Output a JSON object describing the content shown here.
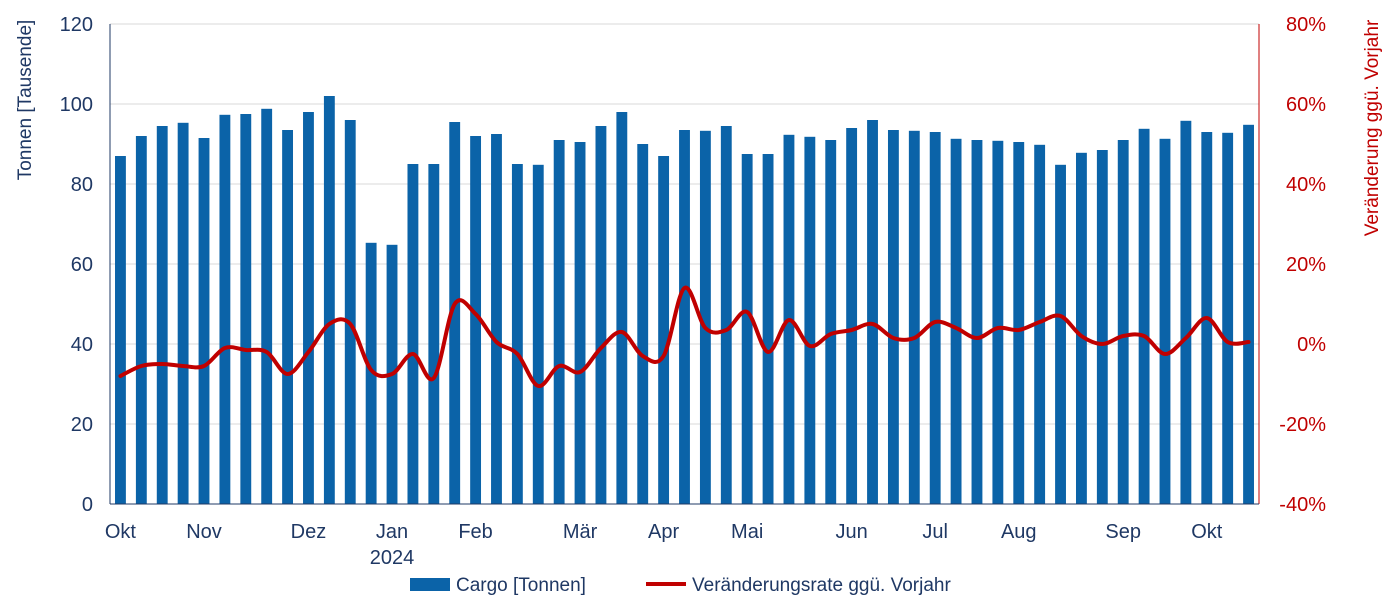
{
  "chart_data": {
    "type": "bar+line",
    "y_left": {
      "label": "Tonnen [Tausende]",
      "range": [
        0,
        120
      ],
      "ticks": [
        "0",
        "20",
        "40",
        "60",
        "80",
        "100",
        "120"
      ]
    },
    "y_right": {
      "label": "Veränderung ggü. Vorjahr",
      "range": [
        -40,
        80
      ],
      "ticks": [
        "-40%",
        "-20%",
        "0%",
        "20%",
        "40%",
        "60%",
        "80%"
      ]
    },
    "month_labels": [
      {
        "label": "Okt",
        "week": 1
      },
      {
        "label": "Nov",
        "week": 5
      },
      {
        "label": "Dez",
        "week": 10
      },
      {
        "label": "Jan",
        "week": 14
      },
      {
        "label": "Feb",
        "week": 18
      },
      {
        "label": "Mär",
        "week": 23
      },
      {
        "label": "Apr",
        "week": 27
      },
      {
        "label": "Mai",
        "week": 31
      },
      {
        "label": "Jun",
        "week": 36
      },
      {
        "label": "Jul",
        "week": 40
      },
      {
        "label": "Aug",
        "week": 44
      },
      {
        "label": "Sep",
        "week": 49
      },
      {
        "label": "Okt",
        "week": 53
      }
    ],
    "year_label": {
      "label": "2024",
      "week": 14
    },
    "grid": true,
    "legend_position": "bottom",
    "series": [
      {
        "name": "Cargo [Tonnen]",
        "type": "bar",
        "axis": "left",
        "color": "#0b63a8",
        "values": [
          87,
          92,
          94.5,
          95.3,
          91.5,
          97.3,
          97.5,
          98.8,
          93.5,
          98,
          102,
          96,
          65.3,
          64.8,
          85,
          85,
          95.5,
          92,
          92.5,
          85,
          84.8,
          91,
          90.5,
          94.5,
          98,
          90,
          87,
          93.5,
          93.3,
          94.5,
          87.5,
          87.5,
          92.3,
          91.8,
          91,
          94,
          96,
          93.5,
          93.3,
          93,
          91.3,
          91,
          90.8,
          90.5,
          89.8,
          84.8,
          87.8,
          88.5,
          91,
          93.8,
          91.3,
          95.8,
          93,
          92.8,
          94.8
        ]
      },
      {
        "name": "Veränderungsrate ggü. Vorjahr",
        "type": "line",
        "axis": "right",
        "color": "#c00000",
        "values": [
          -8,
          -5.5,
          -5,
          -5.5,
          -5.5,
          -1,
          -1.5,
          -2,
          -7.5,
          -2,
          5,
          5,
          -6.5,
          -7.5,
          -2.5,
          -8.5,
          10,
          7.5,
          0.5,
          -2.5,
          -10.5,
          -5.5,
          -7,
          -1,
          3,
          -3,
          -3,
          14,
          4,
          3.5,
          8,
          -2,
          6,
          -0.5,
          2.5,
          3.5,
          5,
          1.5,
          1.5,
          5.5,
          4,
          1.5,
          4,
          3.5,
          5.5,
          7,
          2,
          0,
          2,
          2,
          -2.5,
          1.5,
          6.5,
          0.5,
          0.5
        ]
      }
    ]
  }
}
